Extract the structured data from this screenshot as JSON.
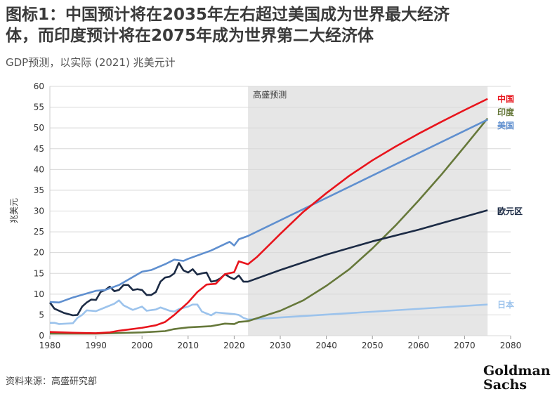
{
  "title_line1": "图标1：中国预计将在2035年左右超过美国成为世界最大经济",
  "title_line2": "体，而印度预计将在2075年成为世界第二大经济体",
  "subtitle": "GDP预测，以实际 (2021) 兆美元计",
  "source": "资料来源：高盛研究部",
  "logo": "Goldman Sachs",
  "chart_data": {
    "type": "line",
    "title": "图标1：中国预计将在2035年左右超过美国成为世界最大经济体，而印度预计将在2075年成为世界第二大经济体",
    "xlabel": "",
    "ylabel": "兆美元",
    "xlim": [
      1980,
      2080
    ],
    "ylim": [
      0,
      60
    ],
    "xticks": [
      1980,
      1990,
      2000,
      2010,
      2020,
      2030,
      2040,
      2050,
      2060,
      2070,
      2080
    ],
    "yticks": [
      0,
      5,
      10,
      15,
      20,
      25,
      30,
      35,
      40,
      45,
      50,
      55,
      60
    ],
    "grid": "horizontal",
    "forecast_region": {
      "label": "高盛预测",
      "from": 2023,
      "to": 2075,
      "color": "#e6e6e6"
    },
    "series": [
      {
        "name": "中国",
        "color": "#e8141c",
        "points": [
          [
            1980,
            0.9
          ],
          [
            1985,
            0.7
          ],
          [
            1990,
            0.6
          ],
          [
            1993,
            0.8
          ],
          [
            1995,
            1.2
          ],
          [
            2000,
            1.9
          ],
          [
            2003,
            2.5
          ],
          [
            2005,
            3.3
          ],
          [
            2007,
            5.0
          ],
          [
            2008,
            6.0
          ],
          [
            2010,
            8.0
          ],
          [
            2012,
            10.5
          ],
          [
            2014,
            12.3
          ],
          [
            2016,
            12.5
          ],
          [
            2018,
            14.8
          ],
          [
            2020,
            15.3
          ],
          [
            2021,
            17.9
          ],
          [
            2023,
            17.2
          ],
          [
            2025,
            19.0
          ],
          [
            2030,
            24.5
          ],
          [
            2035,
            29.8
          ],
          [
            2040,
            34.3
          ],
          [
            2045,
            38.5
          ],
          [
            2050,
            42.2
          ],
          [
            2055,
            45.5
          ],
          [
            2060,
            48.6
          ],
          [
            2065,
            51.5
          ],
          [
            2070,
            54.3
          ],
          [
            2075,
            57.0
          ]
        ]
      },
      {
        "name": "印度",
        "color": "#66783a",
        "points": [
          [
            1980,
            0.5
          ],
          [
            1990,
            0.5
          ],
          [
            2000,
            0.8
          ],
          [
            2005,
            1.1
          ],
          [
            2007,
            1.6
          ],
          [
            2010,
            2.0
          ],
          [
            2015,
            2.3
          ],
          [
            2018,
            2.9
          ],
          [
            2020,
            2.8
          ],
          [
            2021,
            3.3
          ],
          [
            2023,
            3.5
          ],
          [
            2030,
            6.0
          ],
          [
            2035,
            8.5
          ],
          [
            2040,
            12.0
          ],
          [
            2045,
            16.0
          ],
          [
            2050,
            21.0
          ],
          [
            2055,
            26.5
          ],
          [
            2060,
            32.5
          ],
          [
            2065,
            38.8
          ],
          [
            2070,
            45.5
          ],
          [
            2075,
            52.3
          ]
        ]
      },
      {
        "name": "美国",
        "color": "#5f8fcf",
        "points": [
          [
            1980,
            8.1
          ],
          [
            1982,
            8.0
          ],
          [
            1985,
            9.2
          ],
          [
            1990,
            10.8
          ],
          [
            1992,
            11.0
          ],
          [
            1995,
            12.2
          ],
          [
            2000,
            15.4
          ],
          [
            2002,
            15.8
          ],
          [
            2005,
            17.2
          ],
          [
            2007,
            18.3
          ],
          [
            2009,
            18.0
          ],
          [
            2010,
            18.5
          ],
          [
            2015,
            20.5
          ],
          [
            2019,
            22.6
          ],
          [
            2020,
            21.7
          ],
          [
            2021,
            23.2
          ],
          [
            2023,
            24.0
          ],
          [
            2075,
            52.0
          ]
        ]
      },
      {
        "name": "欧元区",
        "color": "#1c2b45",
        "points": [
          [
            1980,
            8.0
          ],
          [
            1981,
            6.5
          ],
          [
            1983,
            5.5
          ],
          [
            1985,
            4.9
          ],
          [
            1986,
            5.0
          ],
          [
            1987,
            7.0
          ],
          [
            1988,
            8.0
          ],
          [
            1989,
            8.7
          ],
          [
            1990,
            8.6
          ],
          [
            1991,
            10.5
          ],
          [
            1992,
            11.0
          ],
          [
            1993,
            11.8
          ],
          [
            1994,
            10.7
          ],
          [
            1995,
            11.0
          ],
          [
            1996,
            12.2
          ],
          [
            1997,
            12.2
          ],
          [
            1998,
            11.0
          ],
          [
            1999,
            11.2
          ],
          [
            2000,
            11.0
          ],
          [
            2001,
            9.8
          ],
          [
            2002,
            9.8
          ],
          [
            2003,
            10.5
          ],
          [
            2004,
            13.0
          ],
          [
            2005,
            14.0
          ],
          [
            2006,
            14.2
          ],
          [
            2007,
            15.0
          ],
          [
            2008,
            17.5
          ],
          [
            2009,
            15.7
          ],
          [
            2010,
            15.2
          ],
          [
            2011,
            16.0
          ],
          [
            2012,
            14.7
          ],
          [
            2013,
            15.0
          ],
          [
            2014,
            15.2
          ],
          [
            2015,
            13.0
          ],
          [
            2016,
            13.2
          ],
          [
            2017,
            13.8
          ],
          [
            2018,
            14.8
          ],
          [
            2019,
            14.1
          ],
          [
            2020,
            13.6
          ],
          [
            2021,
            14.5
          ],
          [
            2022,
            13.0
          ],
          [
            2023,
            13.0
          ],
          [
            2030,
            15.8
          ],
          [
            2040,
            19.5
          ],
          [
            2050,
            22.7
          ],
          [
            2060,
            25.5
          ],
          [
            2075,
            30.2
          ]
        ]
      },
      {
        "name": "日本",
        "color": "#9cc3ec",
        "points": [
          [
            1980,
            3.1
          ],
          [
            1981,
            3.1
          ],
          [
            1982,
            2.8
          ],
          [
            1985,
            3.0
          ],
          [
            1986,
            4.3
          ],
          [
            1987,
            5.0
          ],
          [
            1988,
            6.1
          ],
          [
            1990,
            5.9
          ],
          [
            1992,
            6.8
          ],
          [
            1994,
            7.7
          ],
          [
            1995,
            8.5
          ],
          [
            1996,
            7.3
          ],
          [
            1998,
            6.2
          ],
          [
            2000,
            7.0
          ],
          [
            2001,
            6.0
          ],
          [
            2003,
            6.3
          ],
          [
            2004,
            6.8
          ],
          [
            2006,
            6.0
          ],
          [
            2007,
            5.8
          ],
          [
            2008,
            6.4
          ],
          [
            2010,
            7.0
          ],
          [
            2011,
            7.5
          ],
          [
            2012,
            7.5
          ],
          [
            2013,
            5.8
          ],
          [
            2015,
            4.9
          ],
          [
            2016,
            5.6
          ],
          [
            2018,
            5.4
          ],
          [
            2020,
            5.2
          ],
          [
            2021,
            5.0
          ],
          [
            2022,
            4.3
          ],
          [
            2023,
            3.9
          ],
          [
            2075,
            7.5
          ]
        ]
      }
    ]
  }
}
